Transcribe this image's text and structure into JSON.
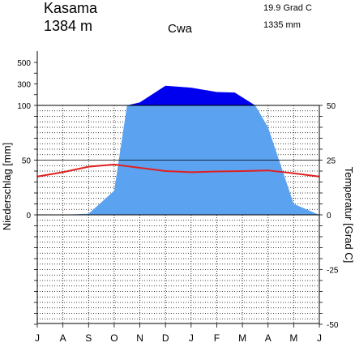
{
  "header": {
    "station": "Kasama",
    "elevation": "1384 m",
    "climate_class": "Cwa",
    "annual_temperature": "19.9 Grad C",
    "annual_precipitation": "1335 mm"
  },
  "chart_data": {
    "type": "area",
    "title": "Kasama",
    "categories": [
      "J",
      "A",
      "S",
      "O",
      "N",
      "D",
      "J",
      "F",
      "M",
      "A",
      "M",
      "J"
    ],
    "x_positions": [
      0,
      1,
      2,
      3,
      4,
      5,
      6,
      7,
      8,
      9,
      10,
      11
    ],
    "ylabel_left": "Niederschlag [mm]",
    "ylabel_right": "Temperatur [Grad C]",
    "left_ticks": [
      {
        "value": 0,
        "label": "0"
      },
      {
        "value": 50,
        "label": "50"
      },
      {
        "value": 100,
        "label": "100"
      },
      {
        "value": 300,
        "label": "300"
      },
      {
        "value": 500,
        "label": "500"
      }
    ],
    "right_ticks": [
      {
        "value": 50,
        "label": "50"
      },
      {
        "value": 25,
        "label": "25"
      },
      {
        "value": 0,
        "label": "0"
      },
      {
        "value": -25,
        "label": "-25"
      },
      {
        "value": -50,
        "label": "-50"
      }
    ],
    "precip_scale_break": 100,
    "grid": true,
    "series": [
      {
        "name": "Niederschlag",
        "unit": "mm",
        "color_light": "#5ba2f0",
        "color_humid": "#0000ee",
        "x": [
          0,
          1,
          2,
          3,
          3.5,
          4,
          5,
          6,
          7,
          7.7,
          8.5,
          9,
          10,
          11
        ],
        "values": [
          0,
          0,
          1,
          22,
          100,
          128,
          283,
          265,
          225,
          220,
          100,
          80,
          10,
          0
        ]
      },
      {
        "name": "Temperatur",
        "unit": "°C",
        "color": "#e02020",
        "x": [
          0,
          1,
          2,
          3,
          4,
          5,
          6,
          7,
          8,
          9,
          10,
          11
        ],
        "values": [
          17.5,
          19.5,
          22,
          23,
          21.5,
          20,
          19.5,
          19.8,
          20,
          20.3,
          19,
          17.5
        ]
      }
    ]
  }
}
